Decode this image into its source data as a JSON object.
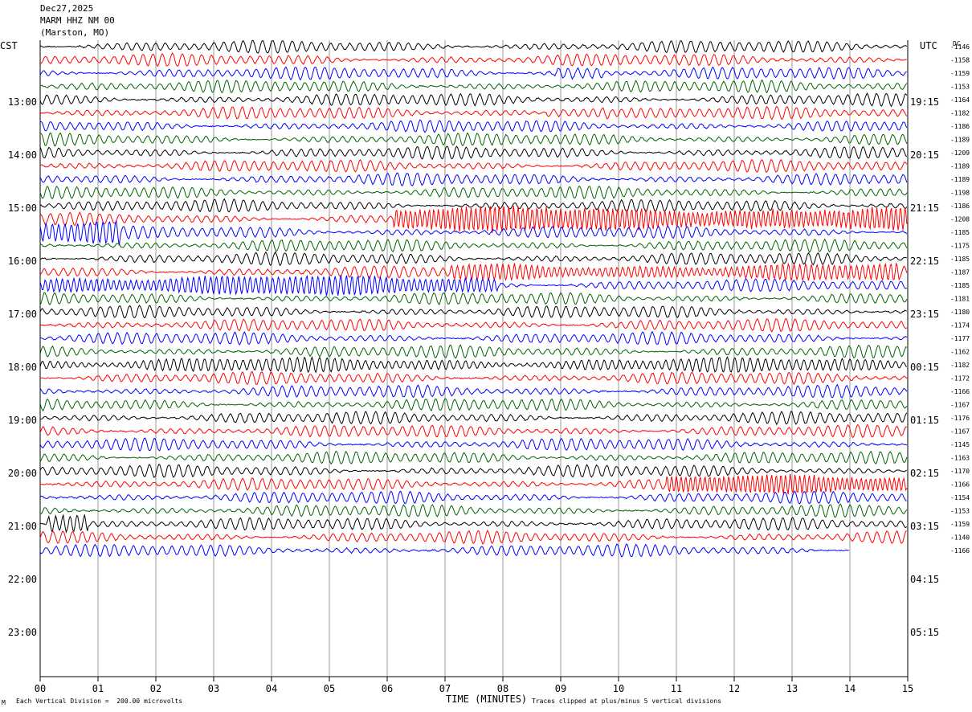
{
  "header": {
    "date": "Dec27,2025",
    "station": "MARM HHZ NM 00",
    "location": "(Marston, MO)"
  },
  "left_axis_label": "CST",
  "right_axis_label": "UTC",
  "dc_label": "DC",
  "x_axis_title": "TIME (MINUTES)",
  "footer_left": "Each Vertical Division =  200.00 microvolts",
  "footer_right": "Traces clipped at plus/minus 5 vertical divisions",
  "corner_mark": "M",
  "colors": {
    "trace_cycle": [
      "#000000",
      "#ff0000",
      "#0000ff",
      "#006400"
    ],
    "grid": "#808080"
  },
  "chart_data": {
    "type": "line",
    "x_ticks": [
      "00",
      "01",
      "02",
      "03",
      "04",
      "05",
      "06",
      "07",
      "08",
      "09",
      "10",
      "11",
      "12",
      "13",
      "14",
      "15"
    ],
    "xlim": [
      0,
      15
    ],
    "cst_hours": [
      "13:00",
      "14:00",
      "15:00",
      "16:00",
      "17:00",
      "18:00",
      "19:00",
      "20:00",
      "21:00",
      "22:00",
      "23:00"
    ],
    "utc_hours": [
      "19:15",
      "20:15",
      "21:15",
      "22:15",
      "23:15",
      "00:15",
      "01:15",
      "02:15",
      "03:15",
      "04:15",
      "05:15"
    ],
    "dc_offsets": [
      "-1146",
      "-1158",
      "-1159",
      "-1153",
      "-1164",
      "-1182",
      "-1186",
      "-1189",
      "-1209",
      "-1189",
      "-1189",
      "-1198",
      "-1186",
      "-1208",
      "-1185",
      "-1175",
      "-1185",
      "-1187",
      "-1185",
      "-1181",
      "-1180",
      "-1174",
      "-1177",
      "-1162",
      "-1182",
      "-1172",
      "-1166",
      "-1167",
      "-1176",
      "-1167",
      "-1145",
      "-1163",
      "-1170",
      "-1166",
      "-1154",
      "-1153",
      "-1159",
      "-1140",
      "-1166"
    ],
    "trace_count": 39,
    "last_trace_end_minute": 14
  }
}
